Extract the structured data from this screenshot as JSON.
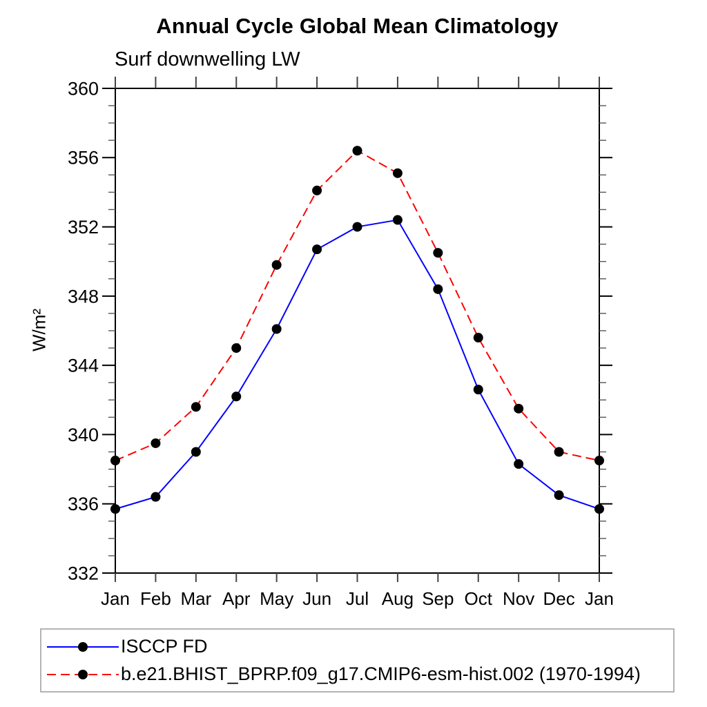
{
  "chart_data": {
    "type": "line",
    "title": "Annual Cycle Global Mean Climatology",
    "subtitle": "Surf downwelling LW",
    "ylabel": "W/m²",
    "x_categories": [
      "Jan",
      "Feb",
      "Mar",
      "Apr",
      "May",
      "Jun",
      "Jul",
      "Aug",
      "Sep",
      "Oct",
      "Nov",
      "Dec",
      "Jan"
    ],
    "ylim": [
      332,
      360
    ],
    "ytick_major_step": 4,
    "ytick_minor_step": 1,
    "grid": false,
    "legend_position": "bottom",
    "axis_color": "#000000",
    "marker_color": "#000000",
    "series": [
      {
        "name": "ISCCP FD",
        "color": "#0000ff",
        "style": "solid",
        "marker": "filled-circle",
        "values": [
          335.7,
          336.4,
          339.0,
          342.2,
          346.1,
          350.7,
          352.0,
          352.4,
          348.4,
          342.6,
          338.3,
          336.5,
          335.7
        ]
      },
      {
        "name": "b.e21.BHIST_BPRP.f09_g17.CMIP6-esm-hist.002 (1970-1994)",
        "color": "#ff0000",
        "style": "dashed",
        "marker": "filled-circle",
        "values": [
          338.5,
          339.5,
          341.6,
          345.0,
          349.8,
          354.1,
          356.4,
          355.1,
          350.5,
          345.6,
          341.5,
          339.0,
          338.5
        ]
      }
    ]
  }
}
